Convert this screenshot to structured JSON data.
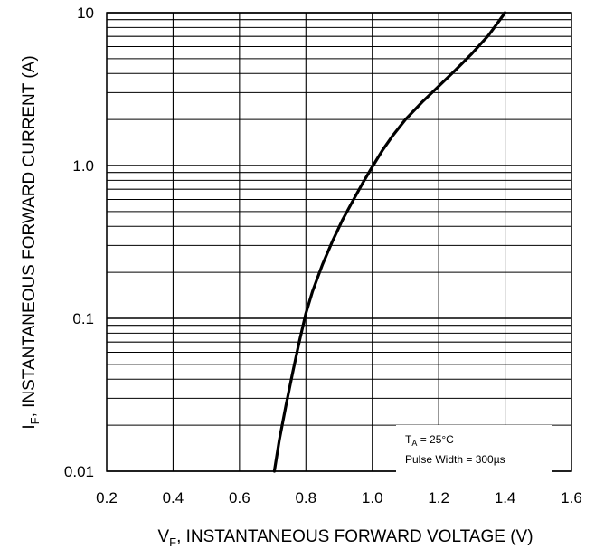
{
  "chart_data": {
    "type": "line",
    "title": "",
    "xlabel": {
      "main": "V",
      "sub": "F",
      "rest": ", INSTANTANEOUS FORWARD VOLTAGE (V)"
    },
    "ylabel": {
      "main": "I",
      "sub": "F",
      "rest": ", INSTANTANEOUS FORWARD CURRENT (A)"
    },
    "xlim": [
      0.2,
      1.6
    ],
    "ylim": [
      0.01,
      10
    ],
    "yscale": "log",
    "grid": true,
    "x_ticks": [
      "0.2",
      "0.4",
      "0.6",
      "0.8",
      "1.0",
      "1.2",
      "1.4",
      "1.6"
    ],
    "y_ticks": [
      {
        "value": 0.01,
        "label": "0.01"
      },
      {
        "value": 0.1,
        "label": "0.1"
      },
      {
        "value": 1,
        "label": "1.0"
      },
      {
        "value": 10,
        "label": "10"
      }
    ],
    "series": [
      {
        "x": [
          0.705,
          0.72,
          0.74,
          0.76,
          0.78,
          0.8,
          0.82,
          0.85,
          0.88,
          0.91,
          0.94,
          0.97,
          1.0,
          1.03,
          1.06,
          1.1,
          1.15,
          1.2,
          1.25,
          1.3,
          1.35,
          1.4
        ],
        "y": [
          0.01,
          0.016,
          0.027,
          0.044,
          0.07,
          0.108,
          0.15,
          0.225,
          0.32,
          0.44,
          0.58,
          0.76,
          0.98,
          1.25,
          1.55,
          2.0,
          2.6,
          3.3,
          4.2,
          5.4,
          7.1,
          10.0
        ]
      }
    ],
    "annotation": {
      "line1_main": "T",
      "line1_sub": "A",
      "line1_rest": " = 25°C",
      "line2": "Pulse Width = 300µs"
    }
  }
}
